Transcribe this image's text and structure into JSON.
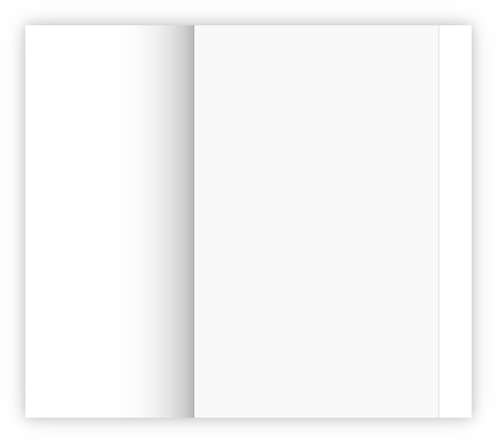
{
  "book": {
    "left_page_text": "",
    "right_page_text": ""
  }
}
